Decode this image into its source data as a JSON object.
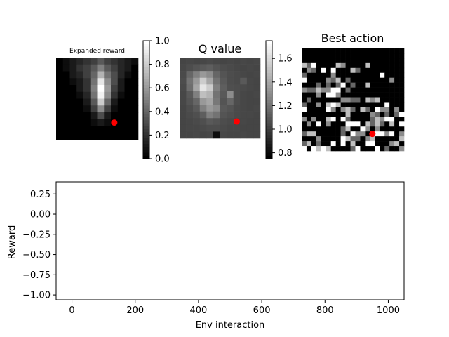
{
  "chart_data": [
    {
      "type": "heatmap",
      "title": "Expanded reward",
      "rows": 12,
      "cols": 12,
      "marker": {
        "row": 9,
        "col": 8,
        "color": "#ff0000"
      },
      "colorbar": {
        "min": 0.0,
        "max": 1.0,
        "ticks": [
          "0.0",
          "0.2",
          "0.4",
          "0.6",
          "0.8",
          "1.0"
        ]
      },
      "values": [
        [
          0.0,
          0.05,
          0.1,
          0.15,
          0.2,
          0.25,
          0.35,
          0.25,
          0.2,
          0.15,
          0.1,
          0.05
        ],
        [
          0.0,
          0.05,
          0.1,
          0.2,
          0.25,
          0.35,
          0.5,
          0.35,
          0.25,
          0.15,
          0.1,
          0.0
        ],
        [
          0.0,
          0.0,
          0.1,
          0.15,
          0.25,
          0.4,
          0.7,
          0.45,
          0.3,
          0.15,
          0.05,
          0.0
        ],
        [
          0.0,
          0.0,
          0.05,
          0.1,
          0.2,
          0.45,
          0.9,
          0.55,
          0.3,
          0.1,
          0.0,
          0.0
        ],
        [
          0.0,
          0.0,
          0.0,
          0.1,
          0.2,
          0.5,
          1.0,
          0.6,
          0.25,
          0.1,
          0.0,
          0.0
        ],
        [
          0.0,
          0.0,
          0.0,
          0.05,
          0.15,
          0.45,
          0.95,
          0.55,
          0.2,
          0.05,
          0.0,
          0.0
        ],
        [
          0.0,
          0.0,
          0.0,
          0.0,
          0.1,
          0.35,
          0.8,
          0.4,
          0.1,
          0.0,
          0.0,
          0.0
        ],
        [
          0.0,
          0.0,
          0.0,
          0.0,
          0.05,
          0.25,
          0.55,
          0.25,
          0.05,
          0.0,
          0.0,
          0.0
        ],
        [
          0.0,
          0.0,
          0.0,
          0.0,
          0.0,
          0.1,
          0.3,
          0.1,
          0.0,
          0.0,
          0.0,
          0.0
        ],
        [
          0.0,
          0.0,
          0.0,
          0.0,
          0.0,
          0.05,
          0.1,
          0.05,
          0.0,
          0.0,
          0.0,
          0.0
        ],
        [
          0.0,
          0.0,
          0.0,
          0.0,
          0.0,
          0.0,
          0.0,
          0.0,
          0.0,
          0.0,
          0.0,
          0.0
        ],
        [
          0.0,
          0.0,
          0.0,
          0.0,
          0.0,
          0.0,
          0.0,
          0.0,
          0.0,
          0.0,
          0.0,
          0.0
        ]
      ]
    },
    {
      "type": "heatmap",
      "title": "Q value",
      "rows": 12,
      "cols": 12,
      "marker": {
        "row": 9,
        "col": 8,
        "color": "#ff0000"
      },
      "colorbar": {
        "min": 0.75,
        "max": 1.75,
        "ticks": [
          "0.8",
          "1.0",
          "1.2",
          "1.4",
          "1.6"
        ]
      },
      "values": [
        [
          1.02,
          1.03,
          1.02,
          1.03,
          1.04,
          1.03,
          1.02,
          1.03,
          1.02,
          1.03,
          1.02,
          1.03
        ],
        [
          1.03,
          1.05,
          1.08,
          1.1,
          1.12,
          1.08,
          1.05,
          1.04,
          1.03,
          1.02,
          1.03,
          1.02
        ],
        [
          1.04,
          1.15,
          1.25,
          1.35,
          1.3,
          1.15,
          1.08,
          1.05,
          1.04,
          1.03,
          1.02,
          1.03
        ],
        [
          1.05,
          1.2,
          1.35,
          1.55,
          1.4,
          1.2,
          1.1,
          1.05,
          1.04,
          1.1,
          1.03,
          1.02
        ],
        [
          1.04,
          1.18,
          1.4,
          1.65,
          1.55,
          1.25,
          1.12,
          1.06,
          1.05,
          1.04,
          1.03,
          1.02
        ],
        [
          1.03,
          1.1,
          1.25,
          1.5,
          1.45,
          1.2,
          1.1,
          1.3,
          1.05,
          1.03,
          1.02,
          1.03
        ],
        [
          1.03,
          1.08,
          1.15,
          1.35,
          1.4,
          1.22,
          1.08,
          1.15,
          1.05,
          1.03,
          1.02,
          1.02
        ],
        [
          1.02,
          1.05,
          1.1,
          1.25,
          1.35,
          1.3,
          1.1,
          1.08,
          1.04,
          1.03,
          1.02,
          1.03
        ],
        [
          1.02,
          1.04,
          1.06,
          1.12,
          1.25,
          1.2,
          1.08,
          1.06,
          1.04,
          1.03,
          1.03,
          1.02
        ],
        [
          1.02,
          1.03,
          1.04,
          1.06,
          1.1,
          1.08,
          1.05,
          1.04,
          1.03,
          1.03,
          1.02,
          1.02
        ],
        [
          1.02,
          1.03,
          1.03,
          1.04,
          1.05,
          1.05,
          1.04,
          1.03,
          1.03,
          1.02,
          1.02,
          1.02
        ],
        [
          1.02,
          1.02,
          1.03,
          1.02,
          1.03,
          0.8,
          1.03,
          1.02,
          1.02,
          1.03,
          1.02,
          1.02
        ]
      ]
    },
    {
      "type": "heatmap",
      "title": "Best action",
      "rows": 21,
      "cols": 21,
      "marker": {
        "row": 17,
        "col": 14,
        "color": "#ff0000"
      }
    },
    {
      "type": "line",
      "title": "",
      "xlabel": "Env interaction",
      "ylabel": "Reward",
      "xlim": [
        -50,
        1050
      ],
      "ylim": [
        -1.06,
        0.4
      ],
      "xticks": [
        "0",
        "200",
        "400",
        "600",
        "800",
        "1000"
      ],
      "yticks": [
        "0.25",
        "0.00",
        "−0.25",
        "−0.50",
        "−0.75",
        "−1.00"
      ],
      "series": []
    }
  ]
}
